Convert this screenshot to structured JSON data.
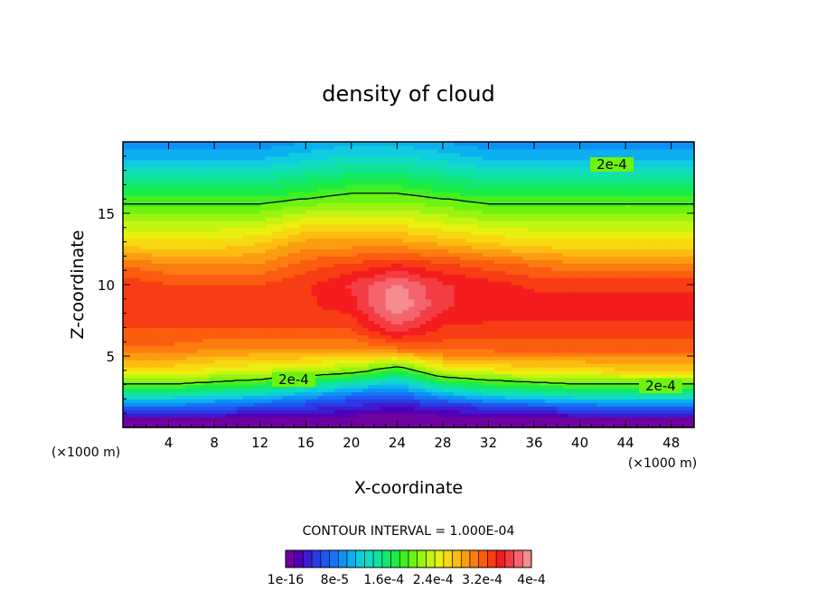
{
  "chart_data": {
    "type": "heatmap",
    "title": "density of cloud",
    "xlabel": "X-coordinate",
    "ylabel": "Z-coordinate",
    "x_unit": "(×1000 m)",
    "xlim": [
      0,
      50
    ],
    "ylim": [
      0,
      20
    ],
    "x_ticks": [
      "4",
      "8",
      "12",
      "16",
      "20",
      "24",
      "28",
      "32",
      "36",
      "40",
      "44",
      "48"
    ],
    "y_ticks": [
      "5",
      "10",
      "15"
    ],
    "contour_interval_text": "CONTOUR INTERVAL = 1.000E-04",
    "contour_labels": [
      "2e-4",
      "2e-4",
      "2e-4"
    ],
    "colorbar": {
      "tick_labels": [
        "1e-16",
        "8e-5",
        "1.6e-4",
        "2.4e-4",
        "3.2e-4",
        "4e-4"
      ],
      "tick_values": [
        0,
        8e-05,
        0.00016,
        0.00024,
        0.00032,
        0.0004
      ],
      "colors": [
        "#7000a0",
        "#5000b8",
        "#3c1cd0",
        "#2a3ae6",
        "#1e56f0",
        "#1674f4",
        "#0c92f6",
        "#0cb0f0",
        "#10cce0",
        "#10dcc0",
        "#10e49a",
        "#12e870",
        "#1cec46",
        "#40f020",
        "#6cf410",
        "#98f410",
        "#c4f410",
        "#e8f010",
        "#f8d810",
        "#fcbc10",
        "#fc9c10",
        "#fc7c10",
        "#fc5c10",
        "#f83c14",
        "#f41c1c",
        "#f43c44",
        "#f4646c",
        "#f48c90"
      ]
    },
    "background_level": 0.00035,
    "layers": [
      {
        "z": 0.5,
        "values": [
          0.0,
          0.0,
          0.0,
          0.0,
          0.0,
          0.0,
          0.0,
          0.0,
          0.0,
          0.0,
          0.0,
          0.0,
          0.0
        ]
      },
      {
        "z": 1.0,
        "values": [
          4e-05,
          4e-05,
          4e-05,
          3e-05,
          3e-05,
          2e-05,
          1e-05,
          2e-05,
          3e-05,
          3e-05,
          4e-05,
          4e-05,
          4e-05
        ]
      },
      {
        "z": 1.5,
        "values": [
          8e-05,
          8e-05,
          7e-05,
          6e-05,
          5e-05,
          4e-05,
          3e-05,
          4e-05,
          5e-05,
          6e-05,
          7e-05,
          8e-05,
          8e-05
        ]
      },
      {
        "z": 2.0,
        "values": [
          0.00012,
          0.00012,
          0.00011,
          0.0001,
          8e-05,
          6e-05,
          5e-05,
          8e-05,
          0.0001,
          0.00011,
          0.00012,
          0.00012,
          0.00012
        ]
      },
      {
        "z": 3.0,
        "values": [
          0.0002,
          0.0002,
          0.00019,
          0.00018,
          0.00016,
          0.00013,
          0.00011,
          0.00016,
          0.00018,
          0.00019,
          0.0002,
          0.0002,
          0.0002
        ]
      },
      {
        "z": 4.0,
        "values": [
          0.00026,
          0.00026,
          0.00025,
          0.00024,
          0.00023,
          0.00022,
          0.00018,
          0.00024,
          0.00025,
          0.00026,
          0.00026,
          0.00027,
          0.00027
        ]
      },
      {
        "z": 5.5,
        "values": [
          0.00031,
          0.00031,
          0.0003,
          0.0003,
          0.0003,
          0.0003,
          0.00031,
          0.00032,
          0.00032,
          0.00032,
          0.00032,
          0.00032,
          0.00032
        ]
      },
      {
        "z": 7.0,
        "values": [
          0.00033,
          0.00033,
          0.00033,
          0.00033,
          0.00033,
          0.00033,
          0.00037,
          0.00034,
          0.00034,
          0.00034,
          0.00034,
          0.00034,
          0.00034
        ]
      },
      {
        "z": 8.5,
        "values": [
          0.00034,
          0.00034,
          0.00034,
          0.00034,
          0.00034,
          0.00035,
          0.0004,
          0.00036,
          0.00035,
          0.00035,
          0.00035,
          0.00035,
          0.00035
        ]
      },
      {
        "z": 10.0,
        "values": [
          0.00034,
          0.00033,
          0.00033,
          0.00033,
          0.00034,
          0.00036,
          0.00039,
          0.00036,
          0.00035,
          0.00034,
          0.00034,
          0.00034,
          0.00034
        ]
      },
      {
        "z": 11.5,
        "values": [
          0.00031,
          0.0003,
          0.0003,
          0.0003,
          0.00032,
          0.00033,
          0.00034,
          0.00033,
          0.00032,
          0.00031,
          0.0003,
          0.0003,
          0.0003
        ]
      },
      {
        "z": 13.0,
        "values": [
          0.00026,
          0.00026,
          0.00026,
          0.00027,
          0.00029,
          0.00029,
          0.00029,
          0.00028,
          0.00027,
          0.00026,
          0.00026,
          0.00026,
          0.00026
        ]
      },
      {
        "z": 14.5,
        "values": [
          0.00023,
          0.00023,
          0.00023,
          0.00023,
          0.00025,
          0.00025,
          0.00025,
          0.00024,
          0.00023,
          0.00023,
          0.00023,
          0.00023,
          0.00023
        ]
      },
      {
        "z": 16.0,
        "values": [
          0.00019,
          0.00019,
          0.00019,
          0.00019,
          0.0002,
          0.00021,
          0.00021,
          0.0002,
          0.00019,
          0.00019,
          0.00019,
          0.00019,
          0.00019
        ]
      },
      {
        "z": 17.5,
        "values": [
          0.00015,
          0.00015,
          0.00015,
          0.00015,
          0.00016,
          0.00017,
          0.00017,
          0.00016,
          0.00015,
          0.00015,
          0.00015,
          0.00015,
          0.00015
        ]
      },
      {
        "z": 19.0,
        "values": [
          0.00011,
          0.00011,
          0.00011,
          0.00011,
          0.00012,
          0.00013,
          0.00013,
          0.00012,
          0.00011,
          0.00011,
          0.00011,
          0.00011,
          0.00011
        ]
      },
      {
        "z": 20.0,
        "values": [
          9e-05,
          9e-05,
          9e-05,
          9e-05,
          0.0001,
          0.00011,
          0.00011,
          0.0001,
          9e-05,
          9e-05,
          9e-05,
          9e-05,
          9e-05
        ]
      }
    ],
    "layer_x": [
      0,
      4,
      8,
      12,
      16,
      20,
      24,
      28,
      32,
      36,
      40,
      44,
      50
    ]
  }
}
